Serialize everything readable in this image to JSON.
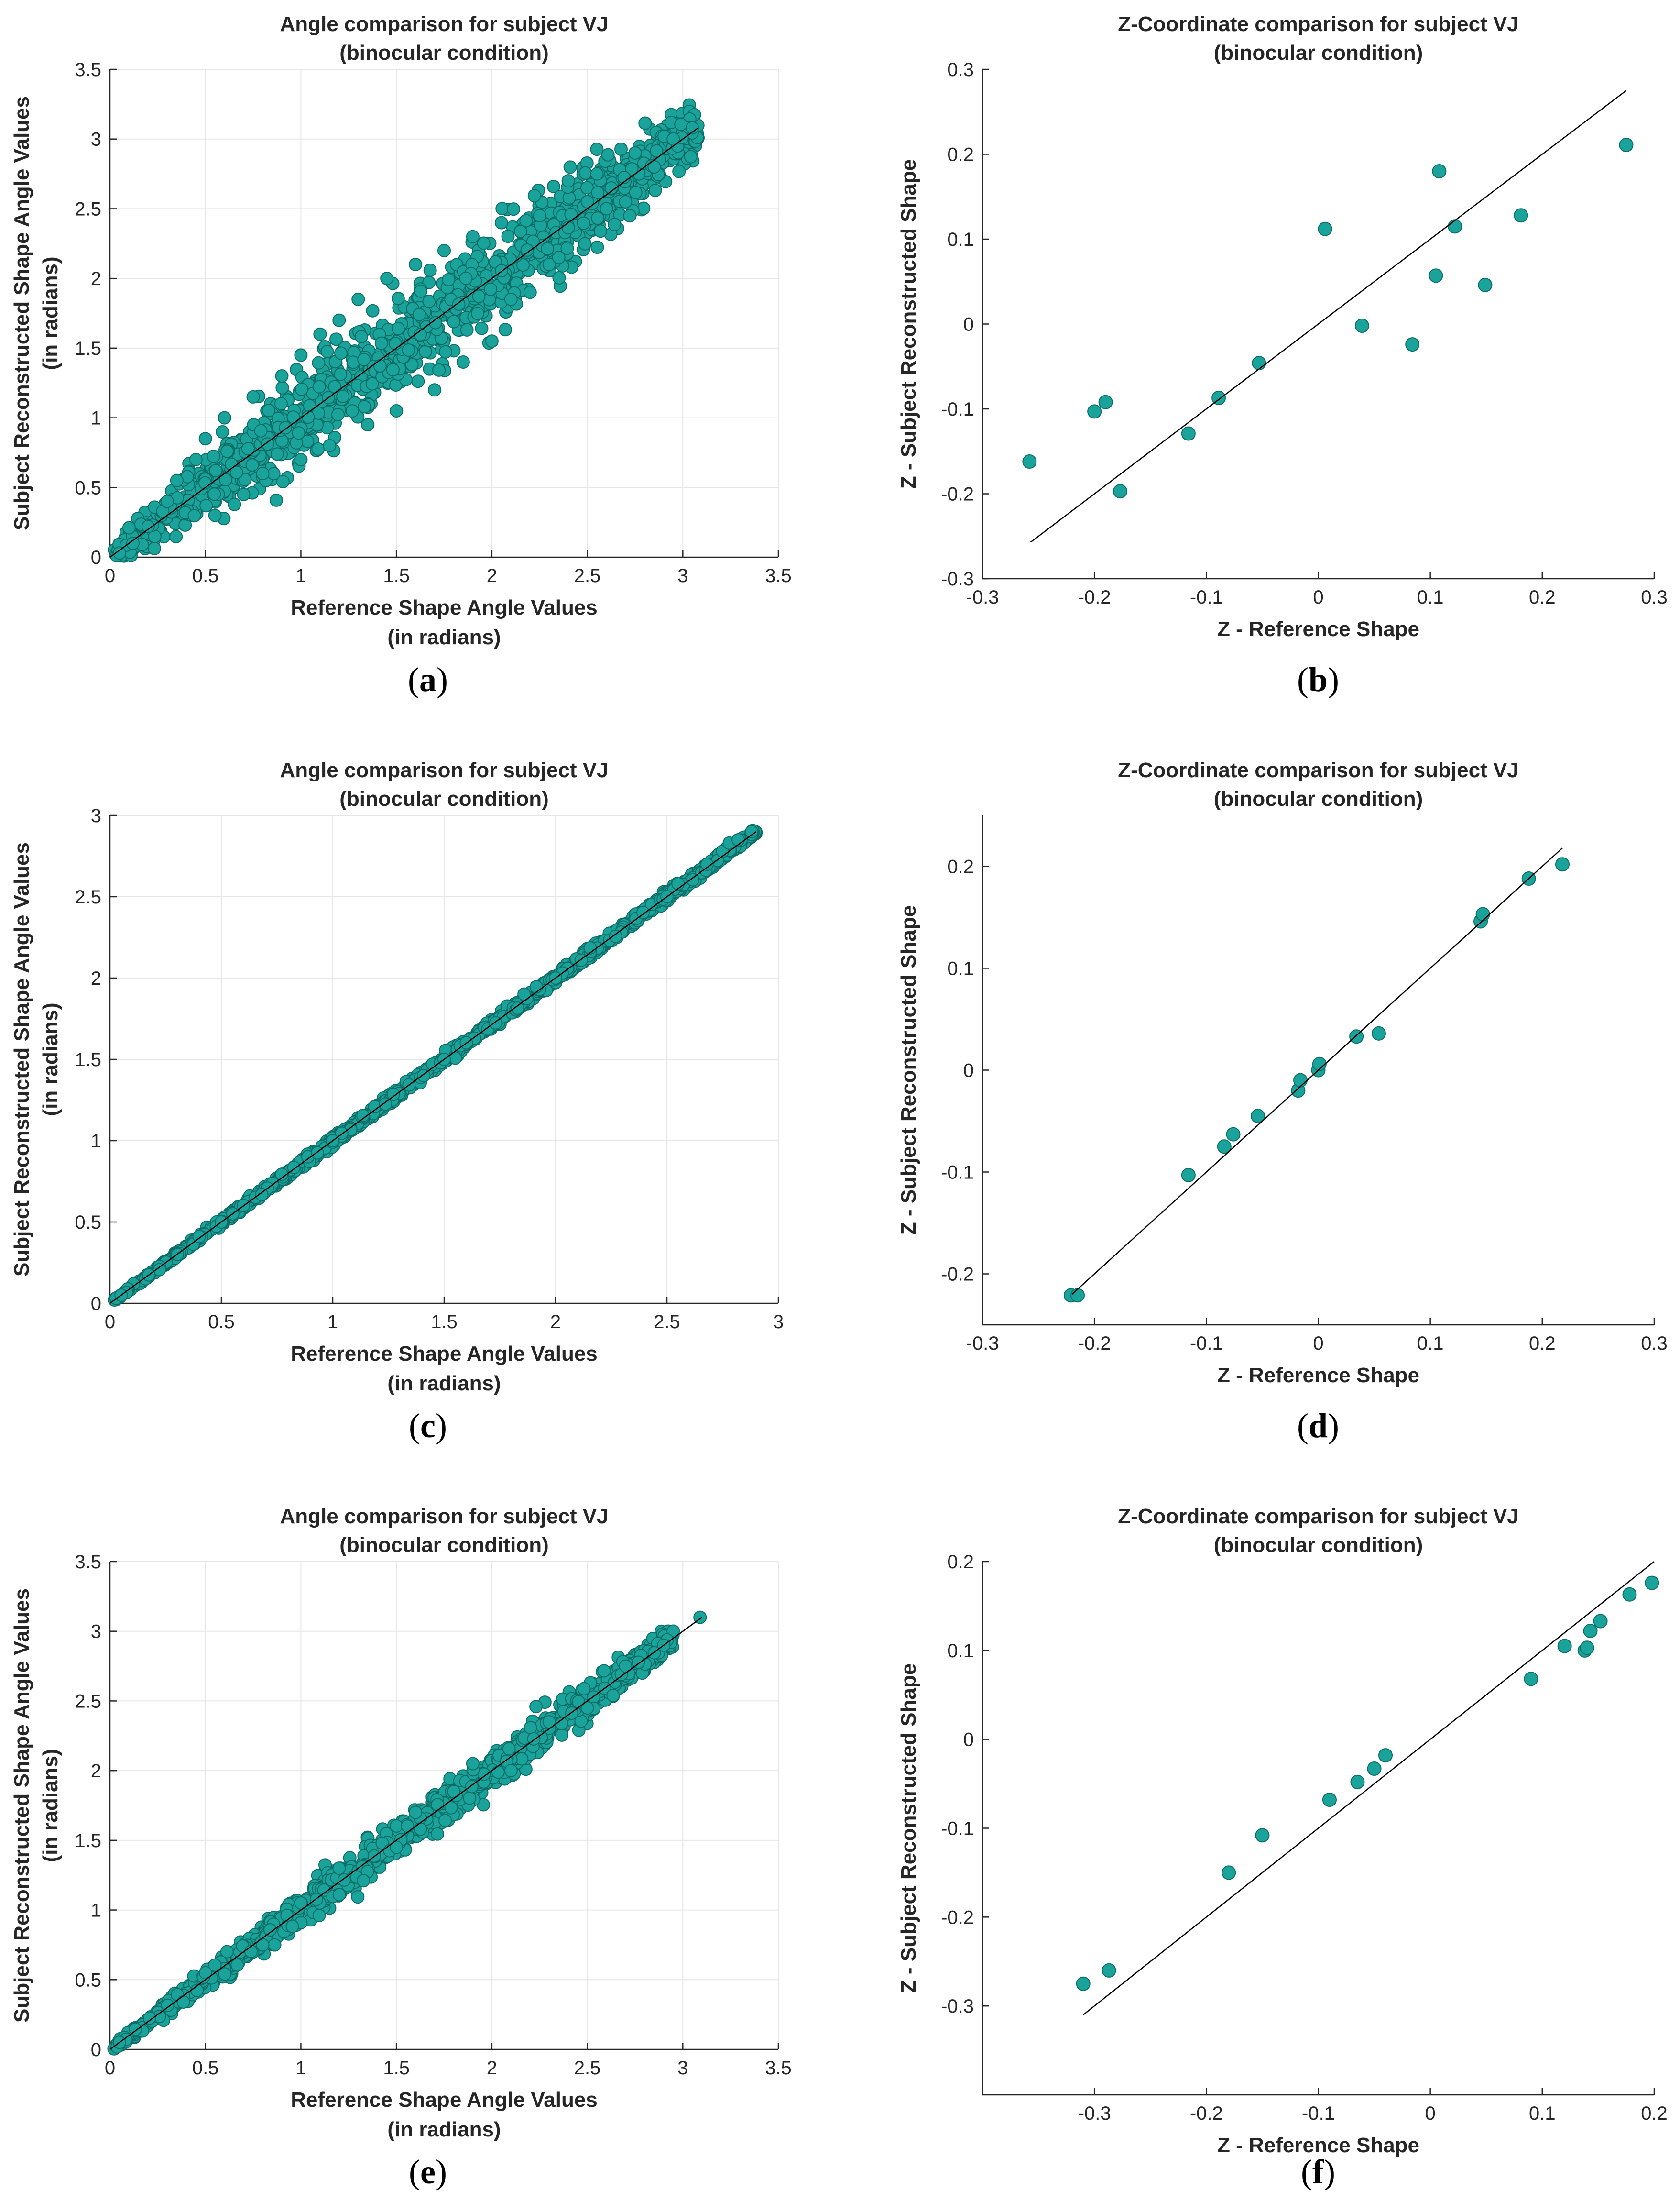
{
  "colors": {
    "marker_fill": "#1aa39a",
    "marker_edge": "#0c6d67",
    "grid": "#e6e6e6",
    "axis": "#262626",
    "ref_line": "#000000"
  },
  "panels": [
    {
      "id": "a",
      "caption": "a",
      "chart_data": {
        "type": "scatter",
        "title": [
          "Angle comparison for subject VJ",
          "(binocular condition)"
        ],
        "xlabel": [
          "Reference Shape Angle Values",
          "(in radians)"
        ],
        "ylabel": [
          "Subject Reconstructed Shape Angle Values",
          "(in radians)"
        ],
        "xlim": [
          0,
          3.5
        ],
        "ylim": [
          0,
          3.5
        ],
        "xticks": [
          0,
          0.5,
          1,
          1.5,
          2,
          2.5,
          3,
          3.5
        ],
        "yticks": [
          0,
          0.5,
          1,
          1.5,
          2,
          2.5,
          3,
          3.5
        ],
        "grid": true,
        "reference_line": [
          [
            0,
            0
          ],
          [
            3.08,
            3.08
          ]
        ],
        "spread": 0.15,
        "range": [
          0.02,
          3.08
        ],
        "points": [
          [
            0.05,
            0.03
          ],
          [
            0.12,
            0.1
          ],
          [
            0.2,
            0.22
          ],
          [
            0.3,
            0.4
          ],
          [
            0.35,
            0.55
          ],
          [
            0.45,
            0.7
          ],
          [
            0.5,
            0.85
          ],
          [
            0.55,
            0.3
          ],
          [
            0.6,
            1.0
          ],
          [
            0.7,
            0.45
          ],
          [
            0.75,
            1.15
          ],
          [
            0.8,
            0.6
          ],
          [
            0.9,
            1.3
          ],
          [
            1.0,
            0.7
          ],
          [
            1.0,
            1.45
          ],
          [
            1.1,
            1.6
          ],
          [
            1.15,
            0.8
          ],
          [
            1.2,
            1.7
          ],
          [
            1.3,
            1.85
          ],
          [
            1.35,
            0.95
          ],
          [
            1.45,
            2.0
          ],
          [
            1.5,
            1.05
          ],
          [
            1.6,
            2.1
          ],
          [
            1.7,
            1.2
          ],
          [
            1.75,
            2.2
          ],
          [
            1.85,
            1.4
          ],
          [
            1.9,
            2.3
          ],
          [
            2.0,
            1.55
          ],
          [
            2.05,
            2.4
          ],
          [
            2.1,
            1.85
          ],
          [
            2.2,
            1.9
          ],
          [
            2.25,
            2.45
          ],
          [
            2.3,
            2.1
          ],
          [
            2.35,
            2.15
          ],
          [
            2.4,
            2.7
          ],
          [
            2.5,
            2.55
          ],
          [
            2.55,
            2.75
          ],
          [
            2.6,
            2.5
          ],
          [
            2.7,
            2.55
          ],
          [
            2.75,
            2.9
          ],
          [
            2.85,
            2.8
          ],
          [
            2.95,
            3.0
          ],
          [
            3.05,
            3.08
          ]
        ]
      }
    },
    {
      "id": "b",
      "caption": "b",
      "chart_data": {
        "type": "scatter",
        "title": [
          "Z-Coordinate comparison for subject VJ",
          "(binocular condition)"
        ],
        "xlabel": [
          "Z - Reference Shape"
        ],
        "ylabel": [
          "Z - Subject Reconstructed Shape"
        ],
        "xlim": [
          -0.3,
          0.3
        ],
        "ylim": [
          -0.3,
          0.3
        ],
        "xticks": [
          -0.3,
          -0.2,
          -0.1,
          0,
          0.1,
          0.2,
          0.3
        ],
        "yticks": [
          -0.3,
          -0.2,
          -0.1,
          0,
          0.1,
          0.2,
          0.3
        ],
        "grid": false,
        "reference_line": [
          [
            -0.257,
            -0.257
          ],
          [
            0.275,
            0.275
          ]
        ],
        "points": [
          [
            -0.258,
            -0.162
          ],
          [
            -0.2,
            -0.103
          ],
          [
            -0.19,
            -0.092
          ],
          [
            -0.177,
            -0.197
          ],
          [
            -0.116,
            -0.129
          ],
          [
            -0.089,
            -0.087
          ],
          [
            -0.053,
            -0.046
          ],
          [
            0.006,
            0.112
          ],
          [
            0.039,
            -0.002
          ],
          [
            0.084,
            -0.024
          ],
          [
            0.105,
            0.057
          ],
          [
            0.108,
            0.18
          ],
          [
            0.122,
            0.115
          ],
          [
            0.149,
            0.046
          ],
          [
            0.181,
            0.128
          ],
          [
            0.275,
            0.211
          ]
        ]
      }
    },
    {
      "id": "c",
      "caption": "c",
      "chart_data": {
        "type": "scatter",
        "title": [
          "Angle comparison for subject VJ",
          "(binocular condition)"
        ],
        "xlabel": [
          "Reference Shape Angle Values",
          "(in radians)"
        ],
        "ylabel": [
          "Subject Reconstructed Shape Angle Values",
          "(in radians)"
        ],
        "xlim": [
          0,
          3
        ],
        "ylim": [
          0,
          3
        ],
        "xticks": [
          0,
          0.5,
          1,
          1.5,
          2,
          2.5,
          3
        ],
        "yticks": [
          0,
          0.5,
          1,
          1.5,
          2,
          2.5,
          3
        ],
        "grid": true,
        "reference_line": [
          [
            0,
            0
          ],
          [
            2.9,
            2.9
          ]
        ],
        "spread": 0.015,
        "range": [
          0.02,
          2.9
        ],
        "points": [
          [
            0.05,
            0.05
          ],
          [
            0.5,
            0.5
          ],
          [
            1.0,
            1.0
          ],
          [
            1.5,
            1.5
          ],
          [
            2.0,
            2.0
          ],
          [
            2.5,
            2.5
          ],
          [
            2.55,
            2.58
          ],
          [
            2.68,
            2.7
          ],
          [
            2.75,
            2.78
          ],
          [
            2.78,
            2.83
          ],
          [
            2.82,
            2.85
          ],
          [
            2.88,
            2.9
          ]
        ]
      }
    },
    {
      "id": "d",
      "caption": "d",
      "chart_data": {
        "type": "scatter",
        "title": [
          "Z-Coordinate comparison for subject VJ",
          "(binocular condition)"
        ],
        "xlabel": [
          "Z - Reference Shape"
        ],
        "ylabel": [
          "Z - Subject Reconstructed Shape"
        ],
        "xlim": [
          -0.3,
          0.3
        ],
        "ylim": [
          -0.25,
          0.25
        ],
        "xticks": [
          -0.3,
          -0.2,
          -0.1,
          0,
          0.1,
          0.2,
          0.3
        ],
        "yticks": [
          -0.2,
          -0.1,
          0,
          0.1,
          0.2
        ],
        "grid": false,
        "reference_line": [
          [
            -0.22,
            -0.22
          ],
          [
            0.218,
            0.218
          ]
        ],
        "points": [
          [
            -0.221,
            -0.221
          ],
          [
            -0.215,
            -0.221
          ],
          [
            -0.116,
            -0.103
          ],
          [
            -0.084,
            -0.075
          ],
          [
            -0.076,
            -0.063
          ],
          [
            -0.054,
            -0.045
          ],
          [
            -0.018,
            -0.02
          ],
          [
            -0.016,
            -0.01
          ],
          [
            0.0,
            0.0
          ],
          [
            0.001,
            0.006
          ],
          [
            0.034,
            0.033
          ],
          [
            0.054,
            0.036
          ],
          [
            0.145,
            0.146
          ],
          [
            0.147,
            0.153
          ],
          [
            0.188,
            0.188
          ],
          [
            0.218,
            0.202
          ]
        ]
      }
    },
    {
      "id": "e",
      "caption": "e",
      "chart_data": {
        "type": "scatter",
        "title": [
          "Angle comparison for subject VJ",
          "(binocular condition)"
        ],
        "xlabel": [
          "Reference Shape Angle Values",
          "(in radians)"
        ],
        "ylabel": [
          "Subject Reconstructed Shape Angle Values",
          "(in radians)"
        ],
        "xlim": [
          0,
          3.5
        ],
        "ylim": [
          0,
          3.5
        ],
        "xticks": [
          0,
          0.5,
          1,
          1.5,
          2,
          2.5,
          3,
          3.5
        ],
        "yticks": [
          0,
          0.5,
          1,
          1.5,
          2,
          2.5,
          3,
          3.5
        ],
        "grid": true,
        "reference_line": [
          [
            0,
            0
          ],
          [
            3.1,
            3.1
          ]
        ],
        "spread": 0.06,
        "range": [
          0.02,
          2.95
        ],
        "points": [
          [
            0.05,
            0.05
          ],
          [
            0.5,
            0.55
          ],
          [
            0.8,
            0.75
          ],
          [
            1.0,
            1.05
          ],
          [
            1.2,
            1.3
          ],
          [
            1.5,
            1.45
          ],
          [
            1.6,
            1.7
          ],
          [
            1.8,
            1.85
          ],
          [
            1.9,
            2.05
          ],
          [
            2.1,
            2.0
          ],
          [
            2.3,
            2.35
          ],
          [
            2.5,
            2.45
          ],
          [
            2.7,
            2.75
          ],
          [
            2.9,
            2.9
          ],
          [
            3.09,
            3.1
          ]
        ]
      }
    },
    {
      "id": "f",
      "caption": "f",
      "chart_data": {
        "type": "scatter",
        "title": [
          "Z-Coordinate comparison for subject VJ",
          "(binocular condition)"
        ],
        "xlabel": [
          "Z - Reference Shape"
        ],
        "ylabel": [
          "Z - Subject Reconstructed Shape"
        ],
        "xlim": [
          -0.4,
          0.2
        ],
        "ylim": [
          -0.4,
          0.2
        ],
        "xticks": [
          -0.3,
          -0.2,
          -0.1,
          0,
          0.1,
          0.2
        ],
        "yticks": [
          -0.3,
          -0.2,
          -0.1,
          0,
          0.1,
          0.2
        ],
        "grid": false,
        "reference_line": [
          [
            -0.31,
            -0.31
          ],
          [
            0.2,
            0.2
          ]
        ],
        "points": [
          [
            -0.31,
            -0.275
          ],
          [
            -0.287,
            -0.26
          ],
          [
            -0.18,
            -0.15
          ],
          [
            -0.15,
            -0.108
          ],
          [
            -0.09,
            -0.068
          ],
          [
            -0.065,
            -0.048
          ],
          [
            -0.05,
            -0.033
          ],
          [
            -0.04,
            -0.018
          ],
          [
            0.09,
            0.068
          ],
          [
            0.12,
            0.105
          ],
          [
            0.138,
            0.1
          ],
          [
            0.14,
            0.103
          ],
          [
            0.143,
            0.122
          ],
          [
            0.152,
            0.133
          ],
          [
            0.178,
            0.163
          ],
          [
            0.198,
            0.176
          ]
        ]
      }
    }
  ]
}
